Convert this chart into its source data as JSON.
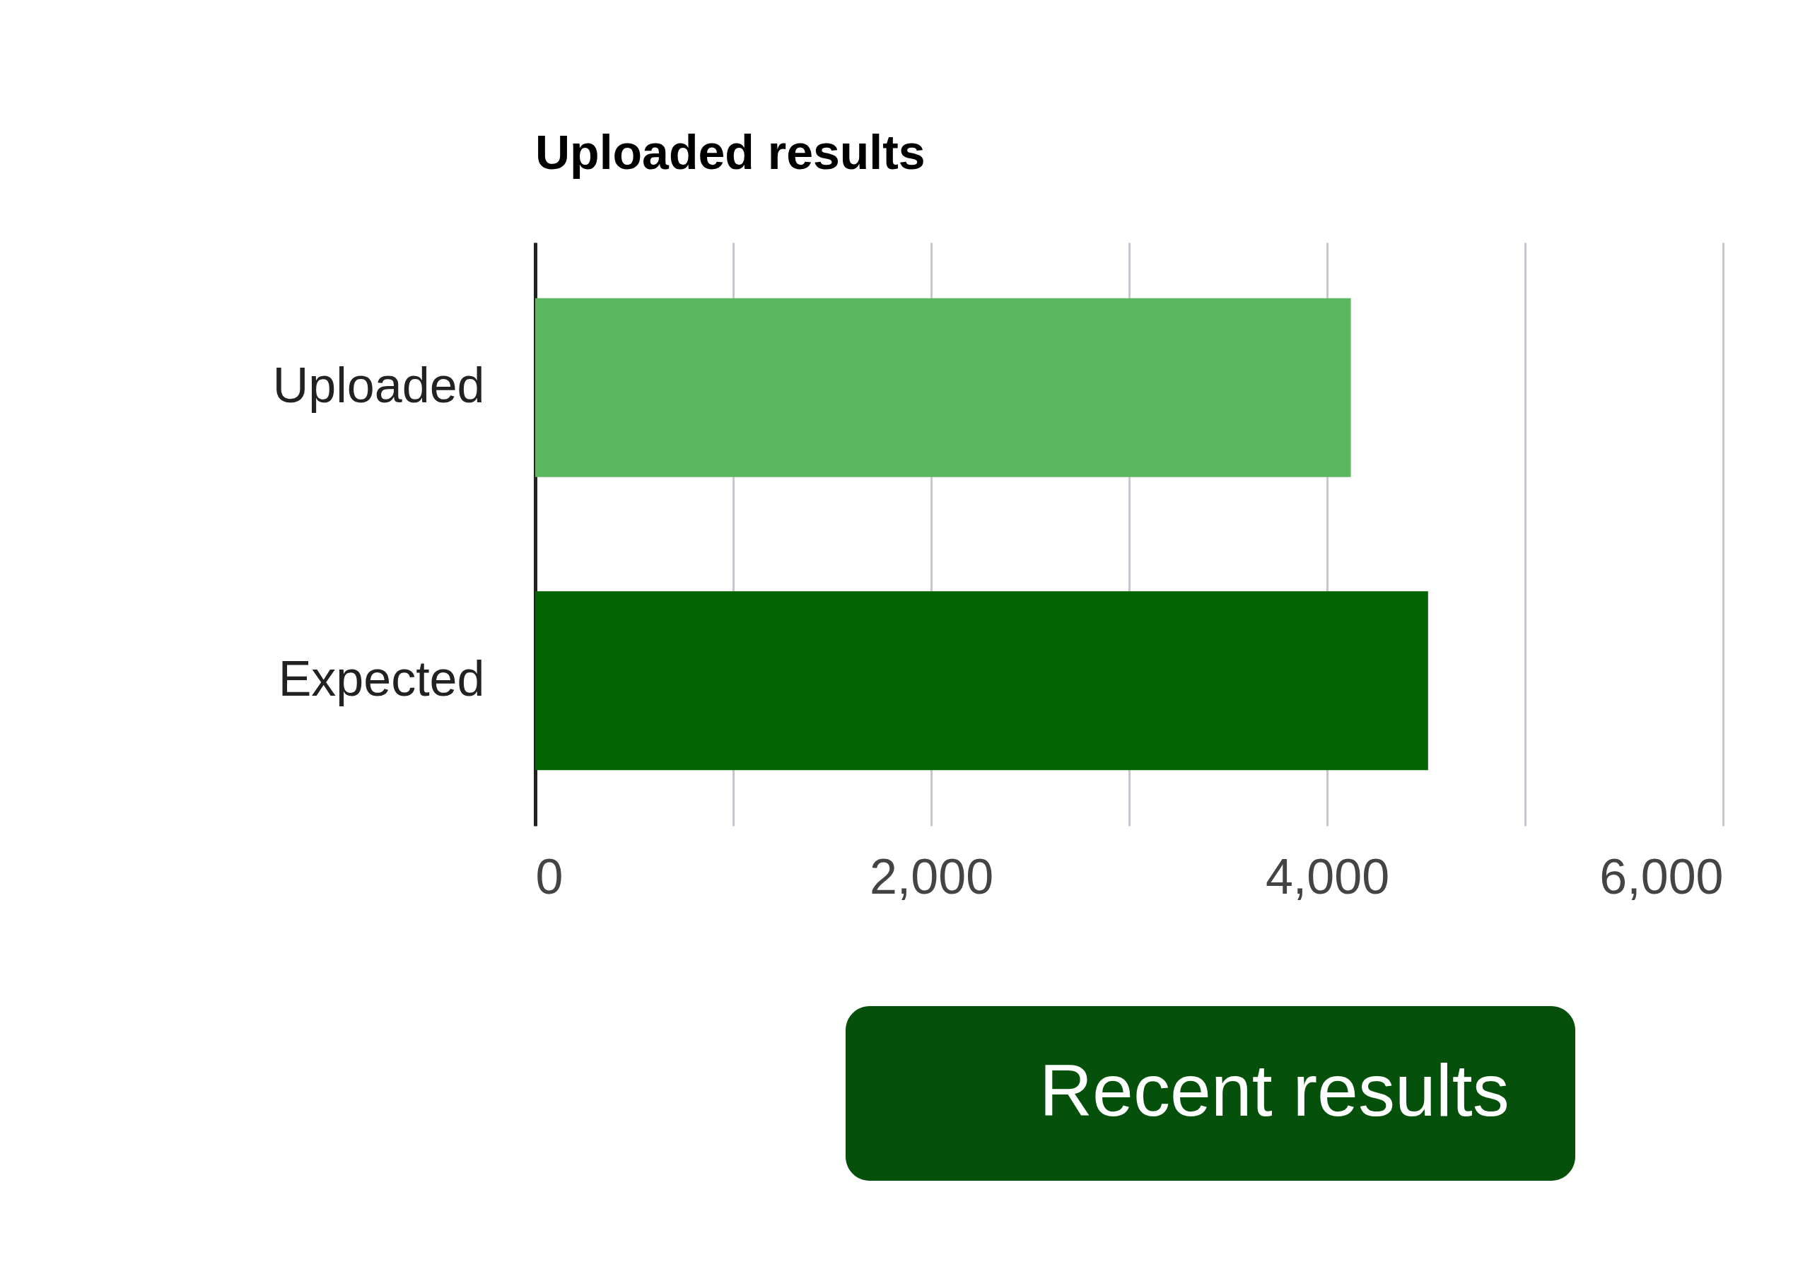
{
  "chart_data": {
    "type": "bar",
    "orientation": "horizontal",
    "title": "Uploaded results",
    "categories": [
      "Uploaded",
      "Expected"
    ],
    "values": [
      4120,
      4510
    ],
    "colors": [
      "#5cb85f",
      "#026402"
    ],
    "xlim": [
      0,
      6000
    ],
    "xticks": [
      0,
      {
        "value": 1000,
        "label": null
      },
      {
        "value": 2000,
        "label": "2,000"
      },
      {
        "value": 3000,
        "label": null
      },
      {
        "value": 4000,
        "label": "4,000"
      },
      {
        "value": 5000,
        "label": null
      },
      {
        "value": 6000,
        "label": "6,000"
      }
    ],
    "grid": "x",
    "annotations": [
      "Recent results"
    ]
  }
}
